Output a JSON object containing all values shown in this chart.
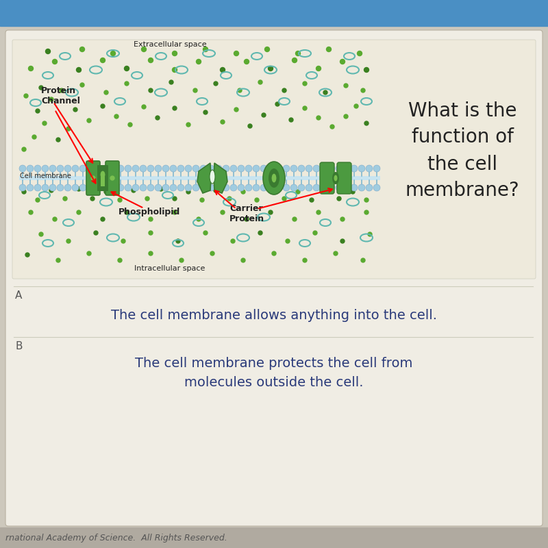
{
  "bg_top_color": "#4a8fc4",
  "bg_main_color": "#cdc8bc",
  "card_color": "#f0ede4",
  "diagram_bg_color": "#eeeadc",
  "title_text": "What is the\nfunction of\nthe cell\nmembrane?",
  "title_color": "#222222",
  "title_fontsize": 20,
  "extracellular_label": "Extracellular space",
  "intracellular_label": "Intracellular space",
  "protein_channel_label": "Protein\nChannel",
  "cell_membrane_label": "Cell membrane",
  "phospholipid_label": "Phospholipid",
  "carrier_protein_label": "Carrier\nProtein",
  "label_color": "#222222",
  "label_fontsize": 8,
  "mem_head_color": "#a0cce0",
  "mem_head_border": "#80aac8",
  "protein_green_dark": "#3a7a30",
  "protein_green_mid": "#4c9a40",
  "protein_green_light": "#7ac050",
  "dot_green": "#5aaa30",
  "dot_green_dark": "#3a8020",
  "dot_cyan_edge": "#60b8b0",
  "answer_color": "#2a3a7a",
  "answer_A_text": "The cell membrane allows anything into the cell.",
  "answer_B_text": "The cell membrane protects the cell from\nmolecules outside the cell.",
  "answer_fontsize": 14,
  "footer_text": "rnational Academy of Science.  All Rights Reserved.",
  "footer_color": "#555555",
  "footer_fontsize": 9
}
